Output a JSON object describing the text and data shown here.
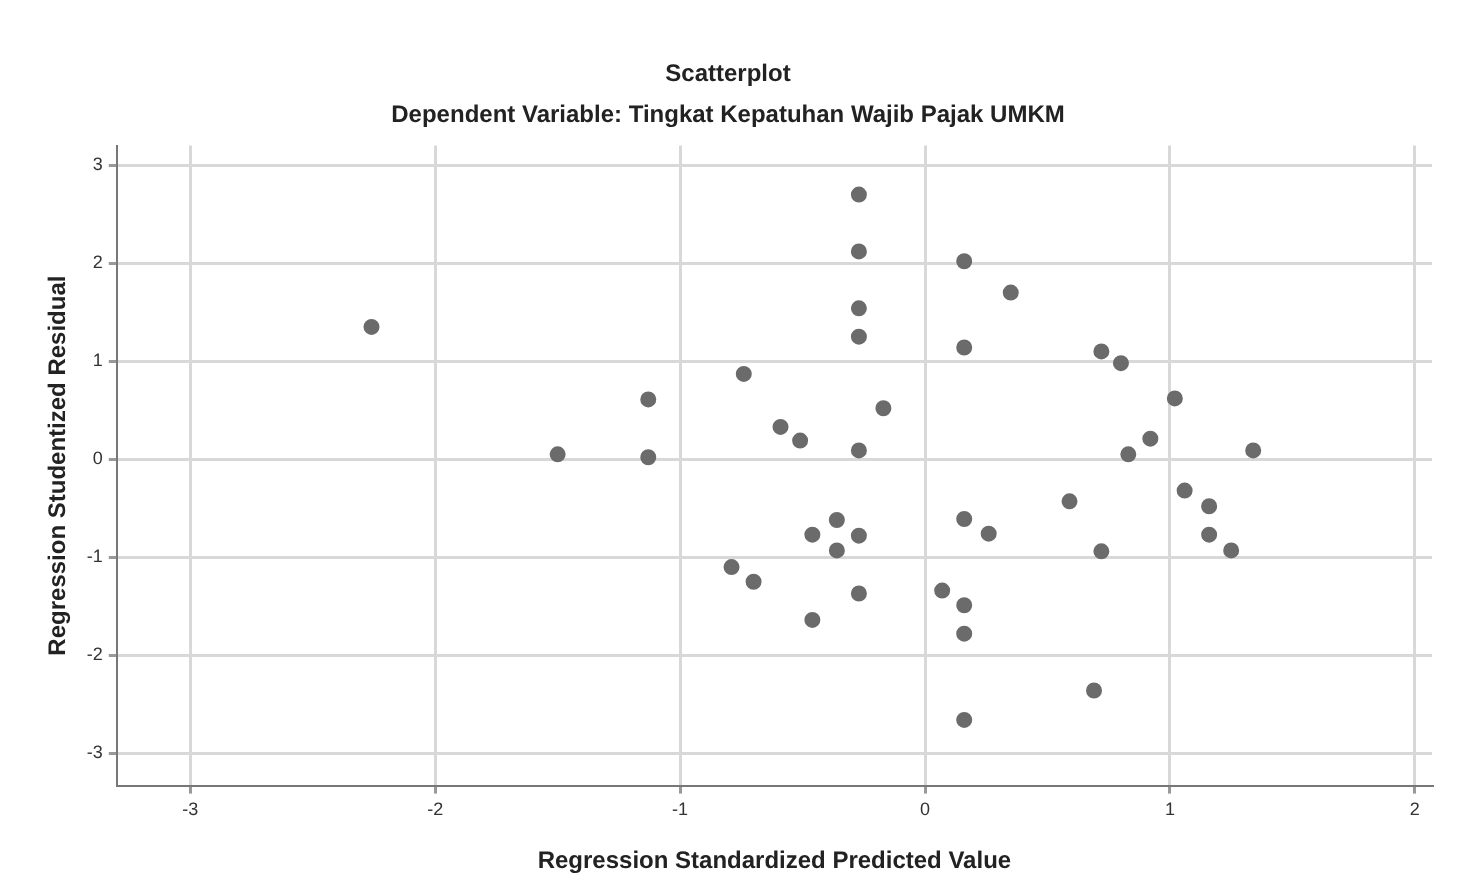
{
  "chart_data": {
    "type": "scatter",
    "title": "Scatterplot",
    "subtitle": "Dependent Variable: Tingkat Kepatuhan Wajib Pajak UMKM",
    "xlabel": "Regression Standardized Predicted Value",
    "ylabel": "Regression Studentized Residual",
    "xlim": [
      -3.3,
      2.07
    ],
    "ylim": [
      -3.33,
      3.2
    ],
    "xticks": [
      -3,
      -2,
      -1,
      0,
      1,
      2
    ],
    "yticks": [
      -3,
      -2,
      -1,
      0,
      1,
      2,
      3
    ],
    "grid": true,
    "marker": "circle",
    "legend": false,
    "series": [
      {
        "color": "#6b6b6b",
        "x": [
          -2.26,
          -1.13,
          -1.5,
          -1.13,
          -0.74,
          -0.79,
          -0.7,
          -0.27,
          -0.27,
          -0.27,
          -0.27,
          -0.27,
          -0.27,
          -0.27,
          -0.59,
          -0.51,
          -0.17,
          -0.36,
          -0.46,
          -0.36,
          -0.46,
          0.16,
          0.35,
          0.16,
          0.72,
          0.8,
          1.02,
          0.92,
          0.83,
          1.34,
          0.59,
          1.06,
          1.16,
          1.16,
          1.25,
          0.72,
          0.16,
          0.26,
          0.07,
          0.16,
          0.16,
          0.69,
          0.16
        ],
        "values": [
          1.35,
          0.61,
          0.05,
          0.02,
          0.87,
          -1.1,
          -1.25,
          2.7,
          2.12,
          1.54,
          1.25,
          0.09,
          -0.78,
          -1.37,
          0.33,
          0.19,
          0.52,
          -0.62,
          -0.77,
          -0.93,
          -1.64,
          2.02,
          1.7,
          1.14,
          1.1,
          0.98,
          0.62,
          0.21,
          0.05,
          0.09,
          -0.43,
          -0.32,
          -0.48,
          -0.77,
          -0.93,
          -0.94,
          -0.61,
          -0.76,
          -1.34,
          -1.49,
          -1.78,
          -2.36,
          -2.66
        ]
      }
    ]
  }
}
